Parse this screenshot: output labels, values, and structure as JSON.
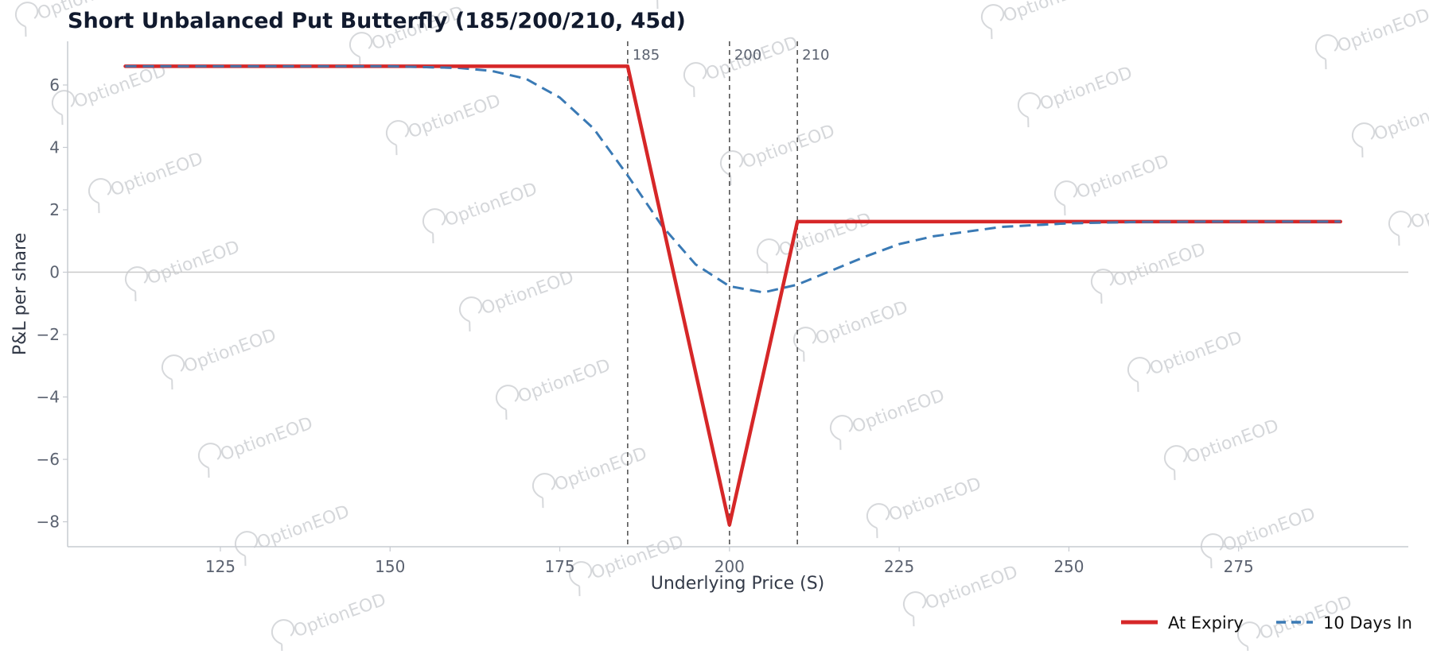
{
  "watermark": {
    "text": "OptionEOD",
    "color": "#c8ccd2"
  },
  "colors": {
    "expiry": "#d62728",
    "days_in": "#3a7ab5",
    "axis": "#c7cbd1",
    "tick_text": "#5b6270",
    "title_text": "#111a2e",
    "strike_line": "#555555",
    "zero_line": "#c9c9c9"
  },
  "chart_data": {
    "type": "line",
    "title": "Short Unbalanced Put Butterfly (185/200/210, 45d)",
    "xlabel": "Underlying Price (S)",
    "ylabel": "P&L per share",
    "xlim": [
      102.5,
      300
    ],
    "ylim": [
      -8.8,
      7.4
    ],
    "xticks": [
      125,
      150,
      175,
      200,
      225,
      250,
      275
    ],
    "yticks": [
      -8,
      -6,
      -4,
      -2,
      0,
      2,
      4,
      6
    ],
    "ytick_labels": [
      "−8",
      "−6",
      "−4",
      "−2",
      "0",
      "2",
      "4",
      "6"
    ],
    "strike_lines": [
      {
        "x": 185,
        "label": "185"
      },
      {
        "x": 200,
        "label": "200"
      },
      {
        "x": 210,
        "label": "210"
      }
    ],
    "zero_line": true,
    "grid": false,
    "legend_position": "bottom-right",
    "series": [
      {
        "name": "At Expiry",
        "style": "solid",
        "x": [
          111,
          185,
          200,
          210,
          290
        ],
        "y": [
          6.6,
          6.6,
          -8.1,
          1.62,
          1.62
        ]
      },
      {
        "name": "10 Days In",
        "style": "dashed",
        "x": [
          111,
          140,
          150,
          160,
          165,
          170,
          175,
          180,
          185,
          190,
          195,
          200,
          205,
          210,
          215,
          220,
          225,
          230,
          240,
          250,
          260,
          270,
          290
        ],
        "y": [
          6.6,
          6.6,
          6.6,
          6.55,
          6.45,
          6.2,
          5.6,
          4.6,
          3.1,
          1.5,
          0.25,
          -0.45,
          -0.65,
          -0.4,
          0.05,
          0.5,
          0.9,
          1.15,
          1.45,
          1.57,
          1.61,
          1.62,
          1.62
        ]
      }
    ]
  }
}
